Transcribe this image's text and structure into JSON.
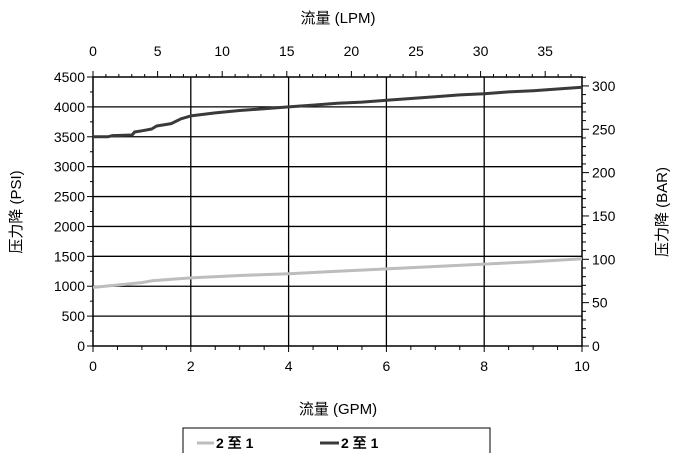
{
  "chart_data": {
    "type": "line",
    "title": "",
    "xlabel": "流量  (GPM)",
    "ylabel": "压力降  (PSI)",
    "x2label": "流量  (LPM)",
    "y2label": "压力降   (BAR)",
    "xlim": [
      0,
      10
    ],
    "ylim": [
      0,
      4500
    ],
    "x2lim": [
      0,
      37.85
    ],
    "y2lim": [
      0,
      310.3
    ],
    "x_ticks": [
      0,
      2,
      4,
      6,
      8,
      10
    ],
    "y_ticks": [
      0,
      500,
      1000,
      1500,
      2000,
      2500,
      3000,
      3500,
      4000,
      4500
    ],
    "x2_ticks": [
      0,
      5,
      10,
      15,
      20,
      25,
      30,
      35
    ],
    "y2_ticks": [
      0,
      50,
      100,
      150,
      200,
      250,
      300
    ],
    "grid": true,
    "legend_position": "bottom",
    "colors": {
      "series_light": "#bdbdbd",
      "series_dark": "#3a3a3a",
      "grid": "#000000"
    },
    "series": [
      {
        "name": "2 至 1",
        "color": "#bdbdbd",
        "x": [
          0,
          0.5,
          1.0,
          1.2,
          2.0,
          3.0,
          4.0,
          5.0,
          6.0,
          7.0,
          8.0,
          9.0,
          10.0
        ],
        "y": [
          980,
          1020,
          1060,
          1090,
          1140,
          1180,
          1210,
          1250,
          1290,
          1330,
          1370,
          1410,
          1460
        ]
      },
      {
        "name": "2 至 1",
        "color": "#3a3a3a",
        "x": [
          0,
          0.3,
          0.4,
          0.8,
          0.85,
          1.0,
          1.2,
          1.3,
          1.6,
          1.8,
          2.0,
          2.5,
          3.0,
          3.5,
          4.0,
          4.5,
          5.0,
          5.5,
          6.0,
          6.5,
          7.0,
          7.5,
          8.0,
          8.5,
          9.0,
          9.5,
          10.0
        ],
        "y": [
          3500,
          3500,
          3520,
          3530,
          3580,
          3600,
          3630,
          3680,
          3720,
          3800,
          3850,
          3900,
          3940,
          3970,
          4000,
          4030,
          4060,
          4080,
          4110,
          4140,
          4170,
          4200,
          4220,
          4250,
          4270,
          4300,
          4330
        ]
      }
    ]
  },
  "legend": {
    "items": [
      {
        "label": "2 至 1",
        "color": "#bdbdbd"
      },
      {
        "label": "2 至 1",
        "color": "#3a3a3a"
      }
    ]
  }
}
